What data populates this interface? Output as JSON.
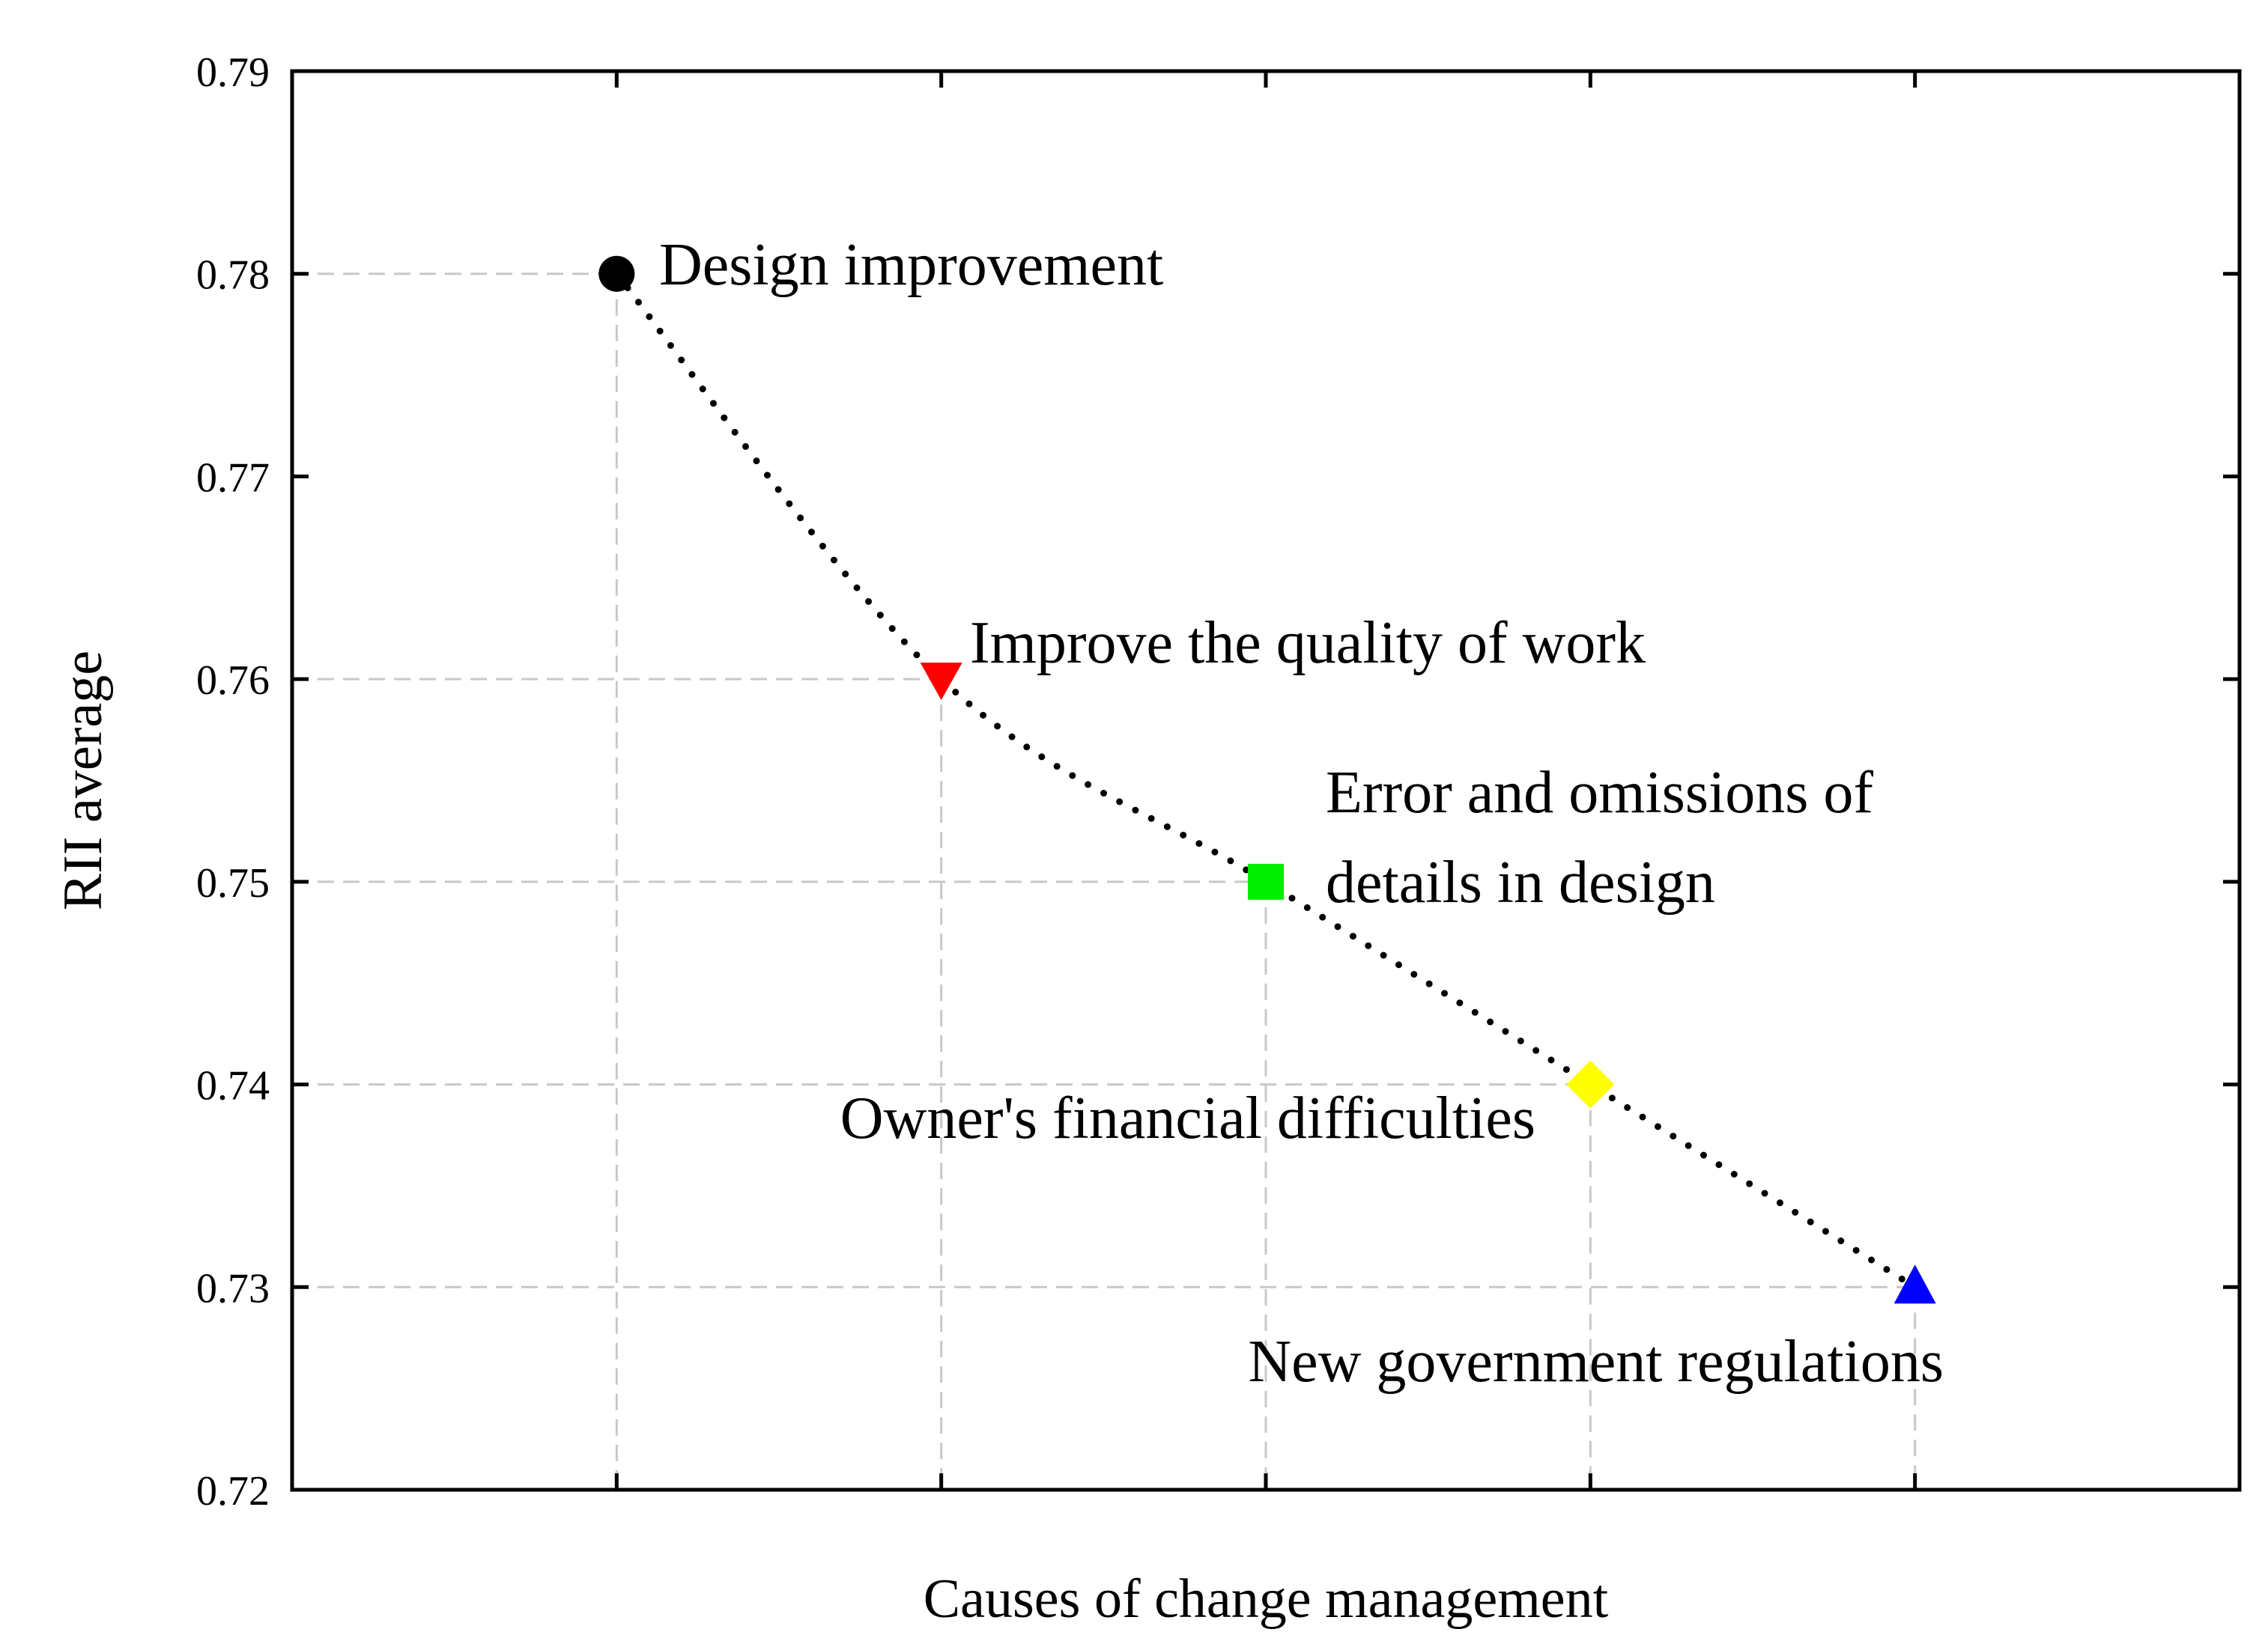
{
  "chart_data": {
    "type": "scatter",
    "xlabel": "Causes of change management",
    "ylabel": "RII average",
    "ylim": [
      0.72,
      0.79
    ],
    "xlim": [
      0,
      6
    ],
    "yticks": [
      "0.72",
      "0.73",
      "0.74",
      "0.75",
      "0.76",
      "0.77",
      "0.78",
      "0.79"
    ],
    "xticks": [
      1,
      2,
      3,
      4,
      5
    ],
    "grid": true,
    "trendline": "dotted",
    "points": [
      {
        "label": "Design improvement",
        "x": 1,
        "y": 0.78,
        "marker": "circle",
        "color": "#000000"
      },
      {
        "label": "Improve the quality of work",
        "x": 2,
        "y": 0.76,
        "marker": "triangle-down",
        "color": "#ff0000"
      },
      {
        "label": "Error and omissions of details in design",
        "label_lines": [
          "Error and omissions of",
          "details in design"
        ],
        "x": 3,
        "y": 0.75,
        "marker": "square",
        "color": "#00ee00"
      },
      {
        "label": "Owner's financial difficulties",
        "x": 4,
        "y": 0.74,
        "marker": "diamond",
        "color": "#ffff00"
      },
      {
        "label": "New government regulations",
        "x": 5,
        "y": 0.73,
        "marker": "triangle-up",
        "color": "#0000ff"
      }
    ]
  }
}
